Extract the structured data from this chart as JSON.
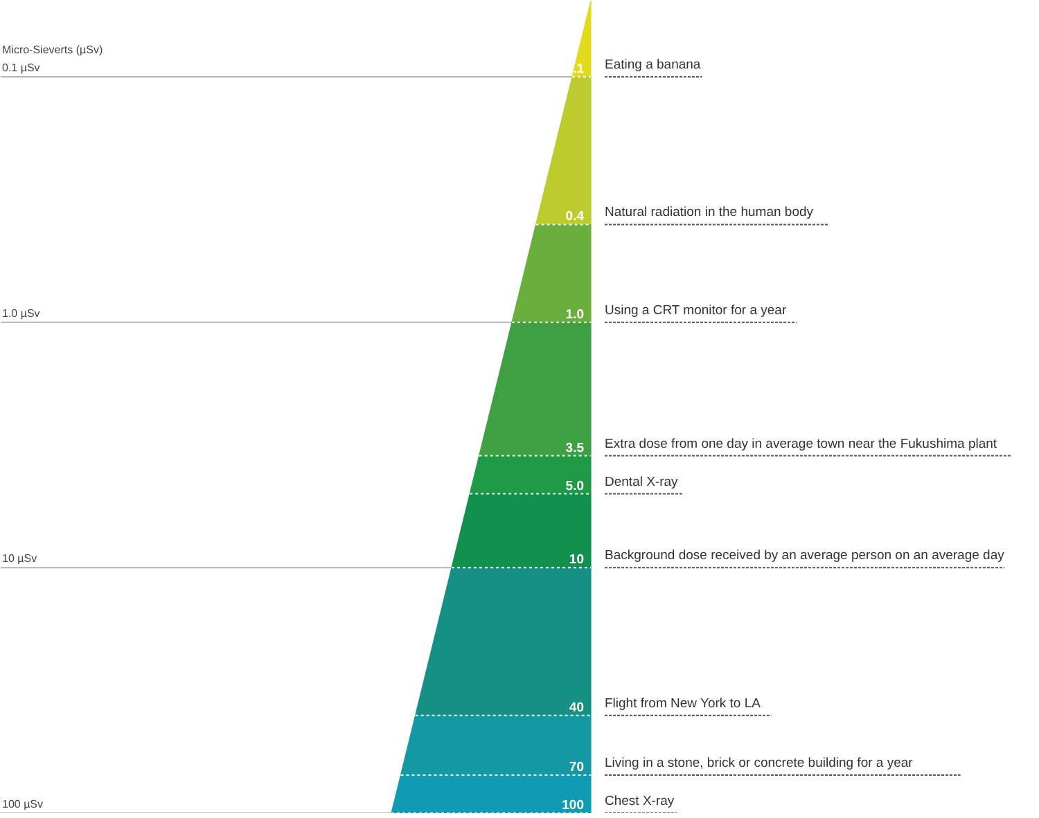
{
  "chart_data": {
    "type": "other",
    "ylabel": "Micro-Sieverts (µSv)",
    "categories": [
      "Eating a banana",
      "Natural radiation in the human body",
      "Using a CRT monitor for a year",
      "Extra dose from one day in average town near the Fukushima plant",
      "Dental X-ray",
      "Background dose received by an average person on an average day",
      "Flight from New York to LA",
      "Living in a stone, brick or concrete building for a year",
      "Chest X-ray"
    ],
    "series": [
      {
        "values": [
          0.1,
          0.4,
          1.0,
          3.5,
          5.0,
          10,
          40,
          70,
          100
        ],
        "value_labels": [
          ".1",
          "0.4",
          "1.0",
          "3.5",
          "5.0",
          "10",
          "40",
          "70",
          "100"
        ],
        "colors": [
          "#e2da1c",
          "#bccb2e",
          "#6aae3c",
          "#3ea042",
          "#1f9a46",
          "#11904e",
          "#149084",
          "#1499a2",
          "#0f9bb4"
        ]
      },
      {
        "color": "#b4b4b4",
        "values": [
          0.1,
          null,
          1,
          null,
          null,
          10,
          null,
          null,
          100
        ],
        "value_labels": [
          "0.1 µSv",
          null,
          "1.0 µSv",
          null,
          null,
          "10 µSv",
          null,
          null,
          "100 µSv"
        ]
      }
    ]
  }
}
